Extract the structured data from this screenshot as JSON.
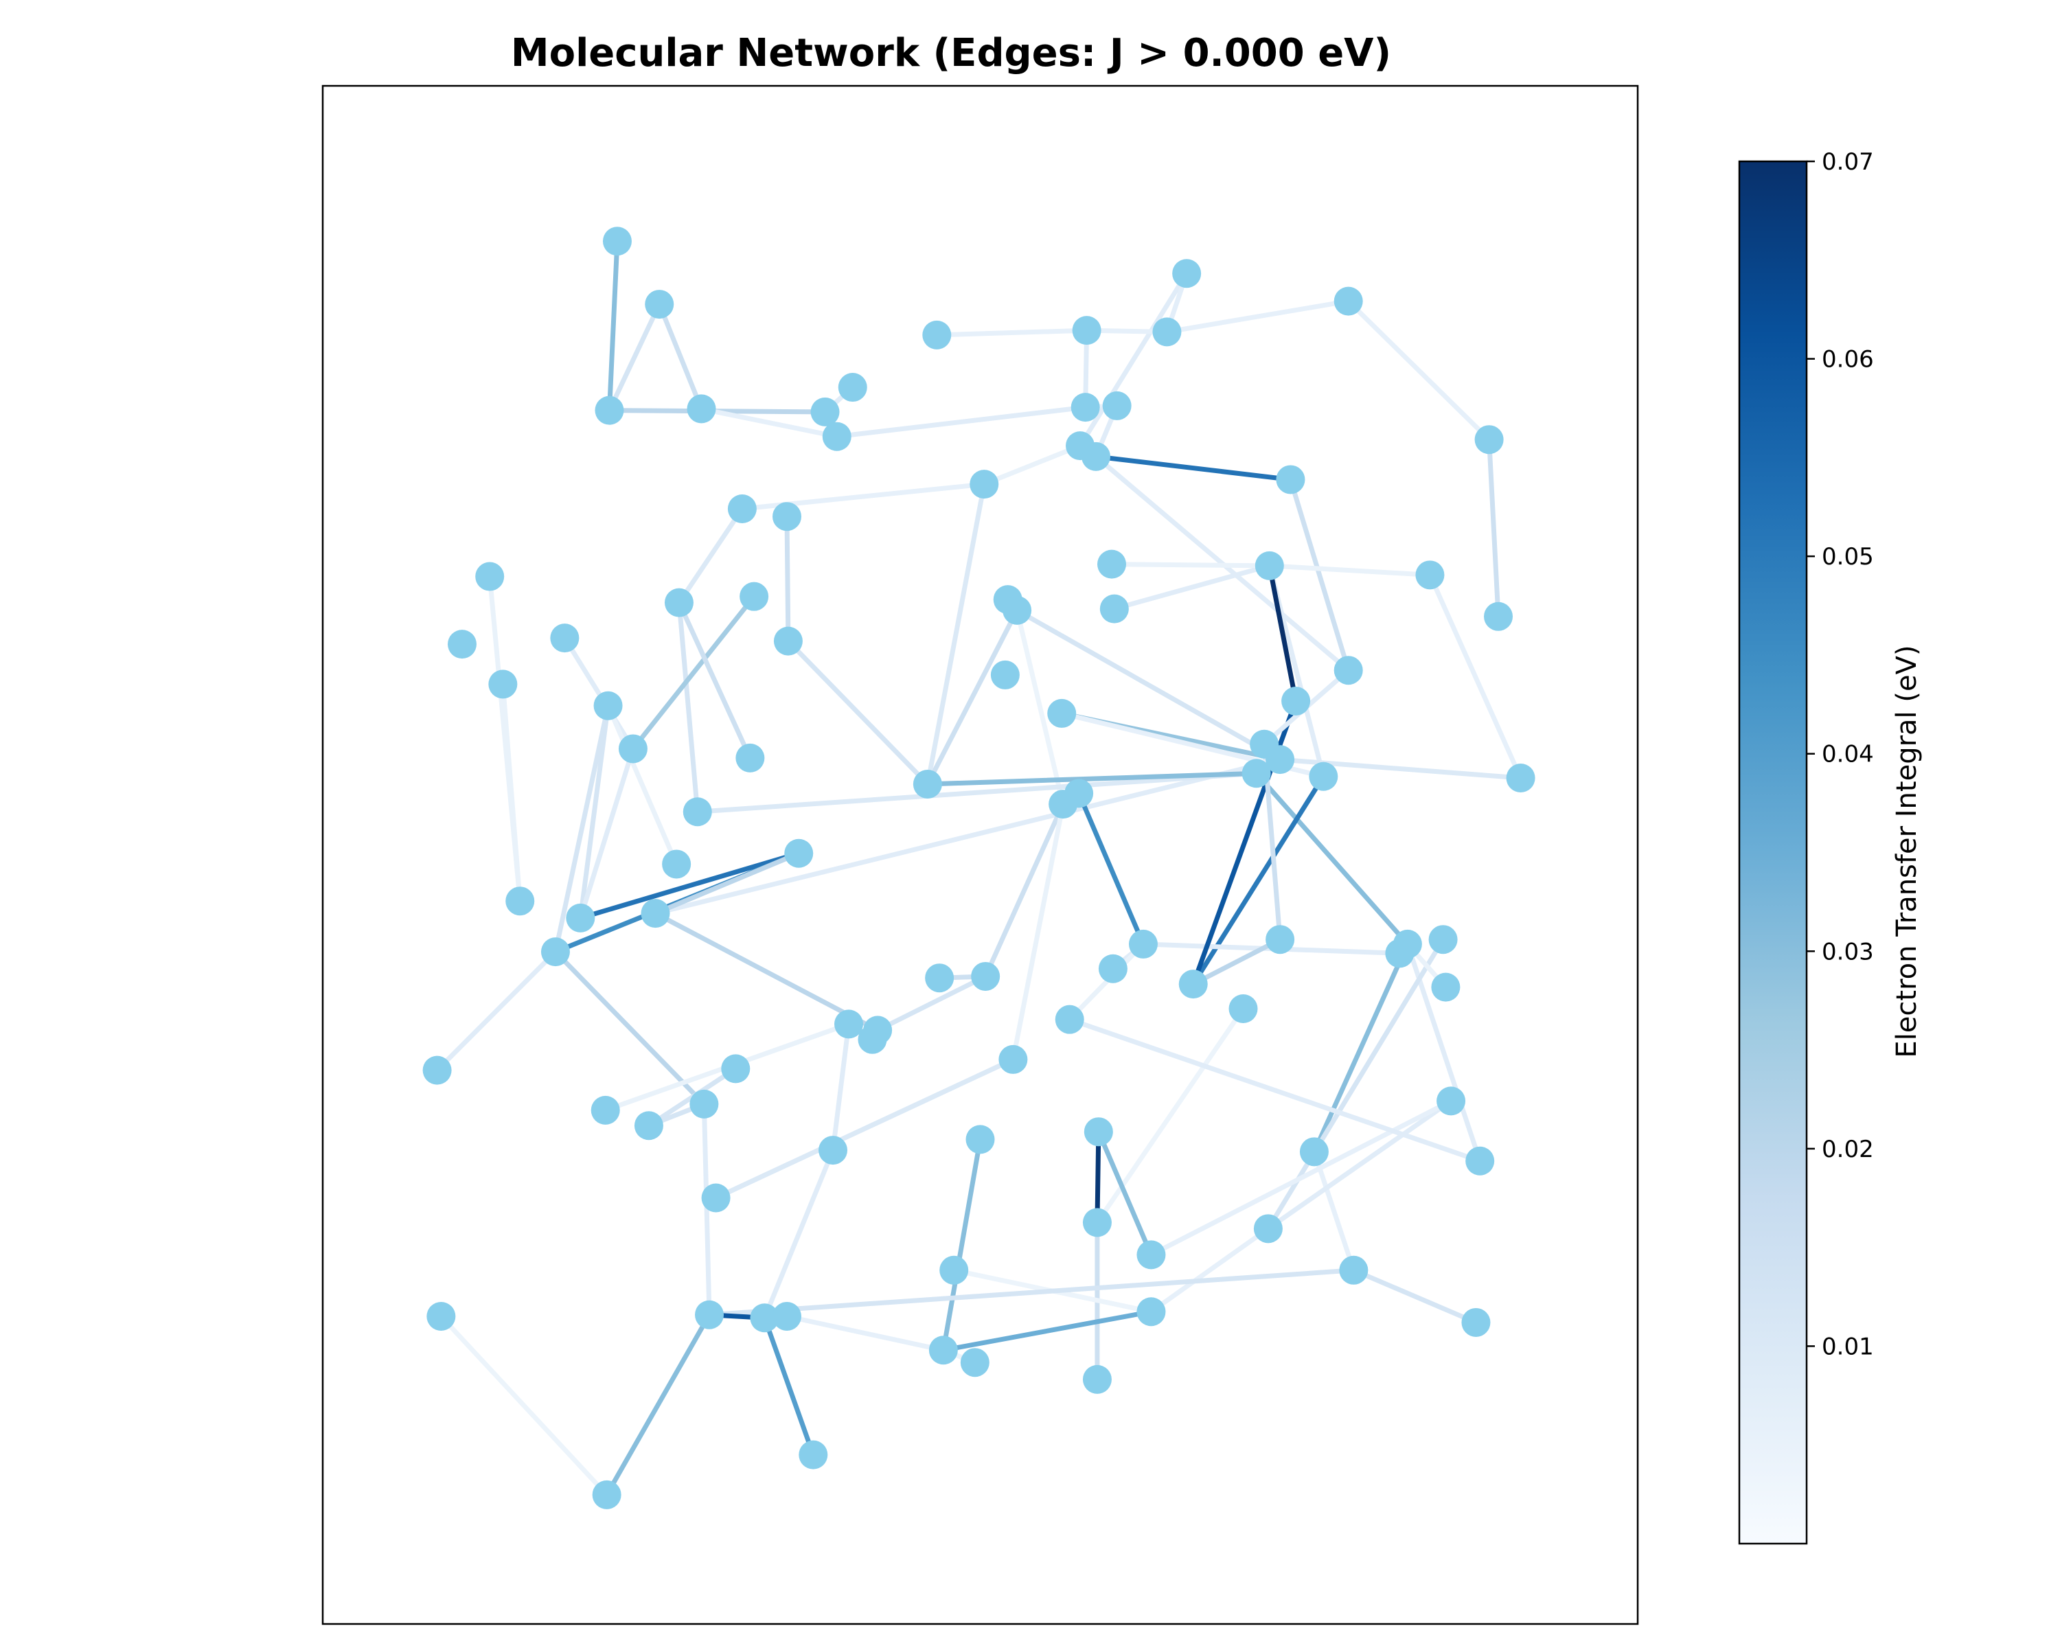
{
  "chart_data": {
    "type": "network",
    "title": "Molecular Network (Edges: J > 0.000 eV)",
    "colorbar": {
      "label": "Electron Transfer Integral (eV)",
      "range": [
        0.0,
        0.07
      ],
      "ticks": [
        "0.01",
        "0.02",
        "0.03",
        "0.04",
        "0.05",
        "0.06",
        "0.07"
      ],
      "colormap": [
        "#f7fbff",
        "#deebf7",
        "#c6dbef",
        "#9ecae1",
        "#6baed6",
        "#4292c6",
        "#2171b5",
        "#08519c",
        "#08306b"
      ]
    },
    "node_color": "#87ceeb",
    "axes_visible": false,
    "xlim": [
      0,
      100
    ],
    "ylim": [
      0,
      100
    ],
    "nodes": [
      [
        22.4,
        89.9
      ],
      [
        21.8,
        78.9
      ],
      [
        25.6,
        85.8
      ],
      [
        28.8,
        79.0
      ],
      [
        38.2,
        78.8
      ],
      [
        40.3,
        80.4
      ],
      [
        39.1,
        77.2
      ],
      [
        46.7,
        83.8
      ],
      [
        58.1,
        84.1
      ],
      [
        58.0,
        79.1
      ],
      [
        60.4,
        79.2
      ],
      [
        57.6,
        76.6
      ],
      [
        58.8,
        75.9
      ],
      [
        65.7,
        87.8
      ],
      [
        64.2,
        84.0
      ],
      [
        78.0,
        86.0
      ],
      [
        31.9,
        72.5
      ],
      [
        35.3,
        72.0
      ],
      [
        50.3,
        74.1
      ],
      [
        73.6,
        74.4
      ],
      [
        88.7,
        77.0
      ],
      [
        12.7,
        68.1
      ],
      [
        10.6,
        63.7
      ],
      [
        13.7,
        61.1
      ],
      [
        18.4,
        64.1
      ],
      [
        27.1,
        66.4
      ],
      [
        32.8,
        66.8
      ],
      [
        35.4,
        63.9
      ],
      [
        52.1,
        66.6
      ],
      [
        52.8,
        65.9
      ],
      [
        60.2,
        66.0
      ],
      [
        60.0,
        68.9
      ],
      [
        51.9,
        61.7
      ],
      [
        72.0,
        68.8
      ],
      [
        84.2,
        68.2
      ],
      [
        89.4,
        65.5
      ],
      [
        78.0,
        62.0
      ],
      [
        74.0,
        60.0
      ],
      [
        21.7,
        59.7
      ],
      [
        23.6,
        56.9
      ],
      [
        32.5,
        56.3
      ],
      [
        46.0,
        54.6
      ],
      [
        56.2,
        59.2
      ],
      [
        71.6,
        57.2
      ],
      [
        72.8,
        56.2
      ],
      [
        71.0,
        55.3
      ],
      [
        76.1,
        55.1
      ],
      [
        91.1,
        55.0
      ],
      [
        28.5,
        52.8
      ],
      [
        57.5,
        54.0
      ],
      [
        56.3,
        53.3
      ],
      [
        26.9,
        49.4
      ],
      [
        36.2,
        50.1
      ],
      [
        15.0,
        47.0
      ],
      [
        19.6,
        45.9
      ],
      [
        25.3,
        46.2
      ],
      [
        17.7,
        43.7
      ],
      [
        62.4,
        44.2
      ],
      [
        72.8,
        44.5
      ],
      [
        81.9,
        43.6
      ],
      [
        82.5,
        44.2
      ],
      [
        85.2,
        44.5
      ],
      [
        46.9,
        42.0
      ],
      [
        50.4,
        42.1
      ],
      [
        60.1,
        42.6
      ],
      [
        66.2,
        41.6
      ],
      [
        70.0,
        40.0
      ],
      [
        85.4,
        41.4
      ],
      [
        8.7,
        36.0
      ],
      [
        40.0,
        39.0
      ],
      [
        42.2,
        38.6
      ],
      [
        41.8,
        38.0
      ],
      [
        56.8,
        39.3
      ],
      [
        52.5,
        36.7
      ],
      [
        31.4,
        36.1
      ],
      [
        21.5,
        33.4
      ],
      [
        24.8,
        32.4
      ],
      [
        29.0,
        33.8
      ],
      [
        50.0,
        31.5
      ],
      [
        59.0,
        32.0
      ],
      [
        38.8,
        30.8
      ],
      [
        29.9,
        27.7
      ],
      [
        75.4,
        30.7
      ],
      [
        85.8,
        34.0
      ],
      [
        88.0,
        30.1
      ],
      [
        58.9,
        26.1
      ],
      [
        63.0,
        24.0
      ],
      [
        71.9,
        25.7
      ],
      [
        48.0,
        23.0
      ],
      [
        78.4,
        23.0
      ],
      [
        9.0,
        20.0
      ],
      [
        29.4,
        20.1
      ],
      [
        33.6,
        19.9
      ],
      [
        35.3,
        20.0
      ],
      [
        63.0,
        20.3
      ],
      [
        47.2,
        17.8
      ],
      [
        49.6,
        17.0
      ],
      [
        58.9,
        15.9
      ],
      [
        37.3,
        11.0
      ],
      [
        21.6,
        8.4
      ],
      [
        87.7,
        19.6
      ]
    ],
    "edges": [
      [
        0,
        1,
        0.03
      ],
      [
        1,
        2,
        0.012
      ],
      [
        2,
        3,
        0.015
      ],
      [
        1,
        4,
        0.02
      ],
      [
        4,
        5,
        0.008
      ],
      [
        4,
        6,
        0.005
      ],
      [
        7,
        8,
        0.006
      ],
      [
        8,
        9,
        0.008
      ],
      [
        9,
        10,
        0.005
      ],
      [
        10,
        12,
        0.008
      ],
      [
        11,
        13,
        0.008
      ],
      [
        13,
        14,
        0.007
      ],
      [
        14,
        8,
        0.006
      ],
      [
        14,
        15,
        0.006
      ],
      [
        15,
        20,
        0.006
      ],
      [
        20,
        35,
        0.015
      ],
      [
        12,
        19,
        0.052
      ],
      [
        19,
        36,
        0.015
      ],
      [
        12,
        36,
        0.008
      ],
      [
        6,
        9,
        0.008
      ],
      [
        16,
        18,
        0.006
      ],
      [
        17,
        27,
        0.015
      ],
      [
        18,
        11,
        0.005
      ],
      [
        21,
        53,
        0.005
      ],
      [
        23,
        53,
        0.005
      ],
      [
        24,
        39,
        0.008
      ],
      [
        25,
        48,
        0.012
      ],
      [
        26,
        39,
        0.025
      ],
      [
        27,
        41,
        0.012
      ],
      [
        28,
        29,
        0.07
      ],
      [
        29,
        41,
        0.015
      ],
      [
        29,
        44,
        0.012
      ],
      [
        29,
        50,
        0.004
      ],
      [
        30,
        33,
        0.008
      ],
      [
        31,
        33,
        0.005
      ],
      [
        33,
        34,
        0.005
      ],
      [
        33,
        46,
        0.008
      ],
      [
        33,
        37,
        0.07
      ],
      [
        34,
        47,
        0.006
      ],
      [
        42,
        44,
        0.028
      ],
      [
        44,
        55,
        0.008
      ],
      [
        45,
        60,
        0.03
      ],
      [
        46,
        65,
        0.05
      ],
      [
        47,
        44,
        0.01
      ],
      [
        48,
        45,
        0.01
      ],
      [
        49,
        50,
        0.008
      ],
      [
        49,
        57,
        0.045
      ],
      [
        50,
        63,
        0.015
      ],
      [
        50,
        73,
        0.005
      ],
      [
        52,
        54,
        0.052
      ],
      [
        52,
        56,
        0.045
      ],
      [
        52,
        55,
        0.02
      ],
      [
        51,
        38,
        0.005
      ],
      [
        38,
        54,
        0.012
      ],
      [
        38,
        56,
        0.012
      ],
      [
        39,
        54,
        0.008
      ],
      [
        55,
        70,
        0.02
      ],
      [
        56,
        77,
        0.02
      ],
      [
        57,
        59,
        0.008
      ],
      [
        58,
        65,
        0.02
      ],
      [
        60,
        59,
        0.03
      ],
      [
        60,
        82,
        0.03
      ],
      [
        60,
        84,
        0.008
      ],
      [
        61,
        87,
        0.012
      ],
      [
        62,
        63,
        0.015
      ],
      [
        63,
        70,
        0.012
      ],
      [
        64,
        57,
        0.008
      ],
      [
        66,
        85,
        0.004
      ],
      [
        67,
        60,
        0.005
      ],
      [
        68,
        56,
        0.008
      ],
      [
        69,
        75,
        0.005
      ],
      [
        70,
        71,
        0.008
      ],
      [
        72,
        57,
        0.005
      ],
      [
        73,
        81,
        0.01
      ],
      [
        74,
        76,
        0.012
      ],
      [
        76,
        77,
        0.012
      ],
      [
        77,
        91,
        0.008
      ],
      [
        78,
        95,
        0.03
      ],
      [
        79,
        85,
        0.068
      ],
      [
        79,
        86,
        0.03
      ],
      [
        80,
        69,
        0.008
      ],
      [
        81,
        73,
        0.01
      ],
      [
        82,
        89,
        0.006
      ],
      [
        83,
        87,
        0.008
      ],
      [
        85,
        97,
        0.015
      ],
      [
        86,
        83,
        0.006
      ],
      [
        87,
        94,
        0.006
      ],
      [
        88,
        94,
        0.004
      ],
      [
        89,
        91,
        0.012
      ],
      [
        90,
        99,
        0.004
      ],
      [
        91,
        92,
        0.06
      ],
      [
        91,
        99,
        0.03
      ],
      [
        92,
        98,
        0.04
      ],
      [
        93,
        95,
        0.006
      ],
      [
        95,
        94,
        0.035
      ],
      [
        96,
        95,
        0.004
      ],
      [
        100,
        89,
        0.012
      ],
      [
        37,
        65,
        0.06
      ],
      [
        58,
        43,
        0.015
      ],
      [
        41,
        18,
        0.01
      ],
      [
        3,
        6,
        0.006
      ],
      [
        25,
        16,
        0.01
      ],
      [
        40,
        25,
        0.015
      ],
      [
        36,
        43,
        0.008
      ],
      [
        80,
        92,
        0.008
      ],
      [
        72,
        84,
        0.008
      ],
      [
        41,
        45,
        0.03
      ],
      [
        42,
        46,
        0.006
      ]
    ]
  }
}
